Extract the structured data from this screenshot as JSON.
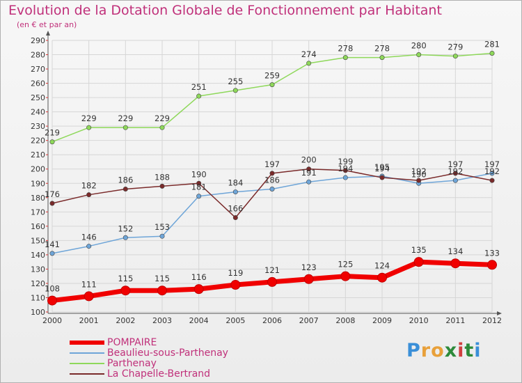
{
  "title": "Evolution de la Dotation Globale de Fonctionnement par Habitant",
  "subtitle": "(en € et par an)",
  "logo": {
    "letters": [
      "P",
      "r",
      "o",
      "x",
      "i",
      "t",
      "i"
    ],
    "colors": [
      "#3a8fd8",
      "#e8a03a",
      "#e8a03a",
      "#2d8a3a",
      "#d04040",
      "#2d8a3a",
      "#3a8fd8"
    ]
  },
  "chart_data": {
    "type": "line",
    "x": [
      2000,
      2001,
      2002,
      2003,
      2004,
      2005,
      2006,
      2007,
      2008,
      2009,
      2010,
      2011,
      2012
    ],
    "ylim": [
      100,
      290
    ],
    "yticks": [
      100,
      110,
      120,
      130,
      140,
      150,
      160,
      170,
      180,
      190,
      200,
      210,
      220,
      230,
      240,
      250,
      260,
      270,
      280,
      290
    ],
    "series": [
      {
        "name": "POMPAIRE",
        "color": "#f00000",
        "values": [
          108,
          111,
          115,
          115,
          116,
          119,
          121,
          123,
          125,
          124,
          135,
          134,
          133
        ]
      },
      {
        "name": "Beaulieu-sous-Parthenay",
        "color": "#6ea5d8",
        "values": [
          141,
          146,
          152,
          153,
          181,
          184,
          186,
          191,
          194,
          195,
          190,
          192,
          197
        ]
      },
      {
        "name": "Parthenay",
        "color": "#8ed85a",
        "values": [
          219,
          229,
          229,
          229,
          251,
          255,
          259,
          274,
          278,
          278,
          280,
          279,
          281
        ]
      },
      {
        "name": "La Chapelle-Bertrand",
        "color": "#7a2a2a",
        "values": [
          176,
          182,
          186,
          188,
          190,
          166,
          197,
          200,
          199,
          194,
          192,
          197,
          192
        ]
      }
    ]
  }
}
